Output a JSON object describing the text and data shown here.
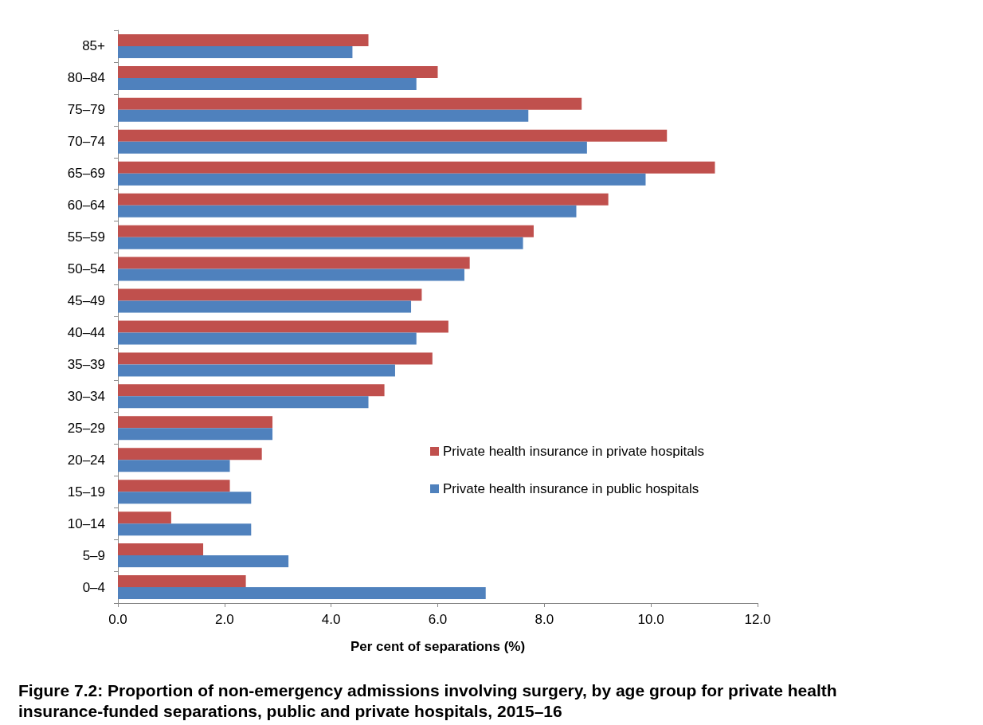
{
  "chart_data": {
    "type": "bar",
    "orientation": "horizontal",
    "title": "Figure 7.2: Proportion of non-emergency admissions involving surgery, by age group for private health insurance-funded separations, public and private hospitals, 2015–16",
    "xlabel": "Per cent of separations (%)",
    "categories": [
      "85+",
      "80–84",
      "75–79",
      "70–74",
      "65–69",
      "60–64",
      "55–59",
      "50–54",
      "45–49",
      "40–44",
      "35–39",
      "30–34",
      "25–29",
      "20–24",
      "15–19",
      "10–14",
      "5–9",
      "0–4"
    ],
    "series": [
      {
        "name": "Private health insurance in private hospitals",
        "color": "#c0504d",
        "values": [
          4.7,
          6.0,
          8.7,
          10.3,
          11.2,
          9.2,
          7.8,
          6.6,
          5.7,
          6.2,
          5.9,
          5.0,
          2.9,
          2.7,
          2.1,
          1.0,
          1.6,
          2.4
        ]
      },
      {
        "name": "Private health insurance in public hospitals",
        "color": "#4f81bd",
        "values": [
          4.4,
          5.6,
          7.7,
          8.8,
          9.9,
          8.6,
          7.6,
          6.5,
          5.5,
          5.6,
          5.2,
          4.7,
          2.9,
          2.1,
          2.5,
          2.5,
          3.2,
          6.9
        ]
      }
    ],
    "xlim": [
      0,
      12
    ],
    "xticks": [
      {
        "value": 0,
        "label": "0.0"
      },
      {
        "value": 2,
        "label": "2.0"
      },
      {
        "value": 4,
        "label": "4.0"
      },
      {
        "value": 6,
        "label": "6.0"
      },
      {
        "value": 8,
        "label": "8.0"
      },
      {
        "value": 10,
        "label": "10.0"
      },
      {
        "value": 12,
        "label": "12.0"
      }
    ],
    "grid": false,
    "legend": "right"
  }
}
